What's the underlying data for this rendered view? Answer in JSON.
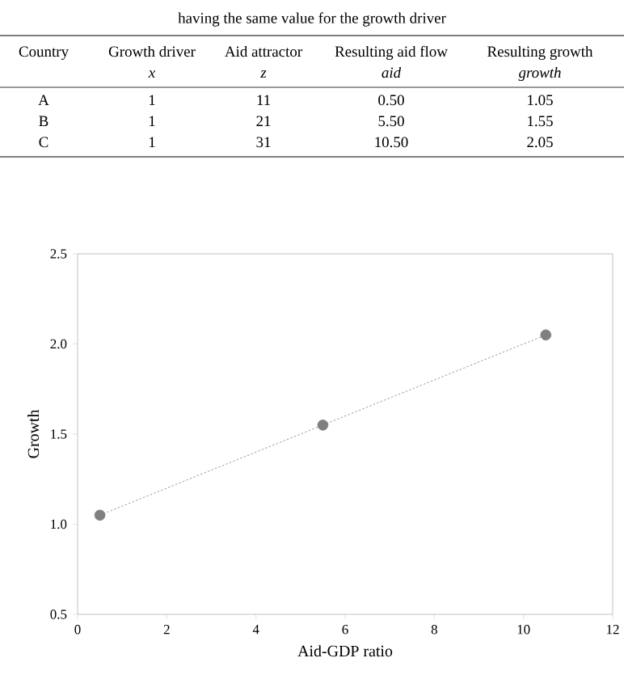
{
  "chart_data": {
    "type": "line",
    "title": "having the same value for the growth driver",
    "xlabel": "Aid-GDP ratio",
    "ylabel": "Growth",
    "annotations": [
      "Country",
      "Growth driver",
      "Aid attractor",
      "Resulting aid flow",
      "Resulting growth",
      "x",
      "z",
      "aid",
      "growth",
      "A",
      "1",
      "11",
      "0.50",
      "1.05",
      "B",
      "1",
      "21",
      "5.50",
      "1.55",
      "C",
      "1",
      "31",
      "10.50",
      "2.05"
    ],
    "series": [
      {
        "color": "#7f7f7f",
        "x": [
          0.5,
          5.5,
          10.5
        ],
        "values": [
          1.05,
          1.55,
          2.05
        ]
      }
    ],
    "marker": "circle",
    "line_style": "dotted",
    "grid": false,
    "xlim": [
      0,
      12
    ],
    "xticks": [
      0,
      2,
      4,
      6,
      8,
      10,
      12
    ],
    "ylim": [
      0.5,
      2.5
    ],
    "yticks": [
      {
        "value": 0.5,
        "label": "0.5"
      },
      {
        "value": 1,
        "label": "1.0"
      },
      {
        "value": 1.5,
        "label": "1.5"
      },
      {
        "value": 2,
        "label": "2.0"
      },
      {
        "value": 2.5,
        "label": "2.5"
      }
    ]
  }
}
